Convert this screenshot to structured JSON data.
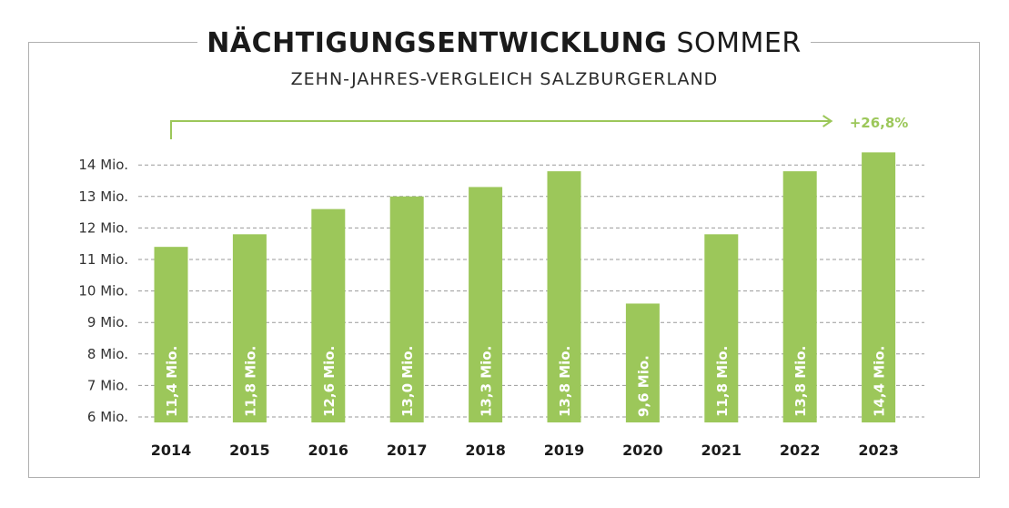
{
  "header": {
    "title_bold": "NÄCHTIGUNGSENTWICKLUNG",
    "title_light": "SOMMER",
    "subtitle": "ZEHN-JAHRES-VERGLEICH SALZBURGERLAND"
  },
  "colors": {
    "bar": "#9cc75a",
    "accent": "#9cc75a",
    "grid": "#9a9a9a",
    "text": "#1a1a1a"
  },
  "chart_data": {
    "type": "bar",
    "title": "NÄCHTIGUNGSENTWICKLUNG SOMMER",
    "subtitle": "ZEHN-JAHRES-VERGLEICH SALZBURGERLAND",
    "categories": [
      "2014",
      "2015",
      "2016",
      "2017",
      "2018",
      "2019",
      "2020",
      "2021",
      "2022",
      "2023"
    ],
    "values": [
      11.4,
      11.8,
      12.6,
      13.0,
      13.3,
      13.8,
      9.6,
      11.8,
      13.8,
      14.4
    ],
    "data_labels": [
      "11,4 Mio.",
      "11,8 Mio.",
      "12,6 Mio.",
      "13,0 Mio.",
      "13,3 Mio.",
      "13,8 Mio.",
      "9,6 Mio.",
      "11,8 Mio.",
      "13,8 Mio.",
      "14,4 Mio."
    ],
    "y_ticks": [
      6,
      7,
      8,
      9,
      10,
      11,
      12,
      13,
      14
    ],
    "y_tick_labels": [
      "6 Mio.",
      "7 Mio.",
      "8 Mio.",
      "9 Mio.",
      "10 Mio.",
      "11 Mio.",
      "12 Mio.",
      "13 Mio.",
      "14 Mio."
    ],
    "ylim": [
      6,
      14.4
    ],
    "xlabel": "",
    "ylabel": "",
    "grid": true,
    "annotation": "+26,8%"
  }
}
